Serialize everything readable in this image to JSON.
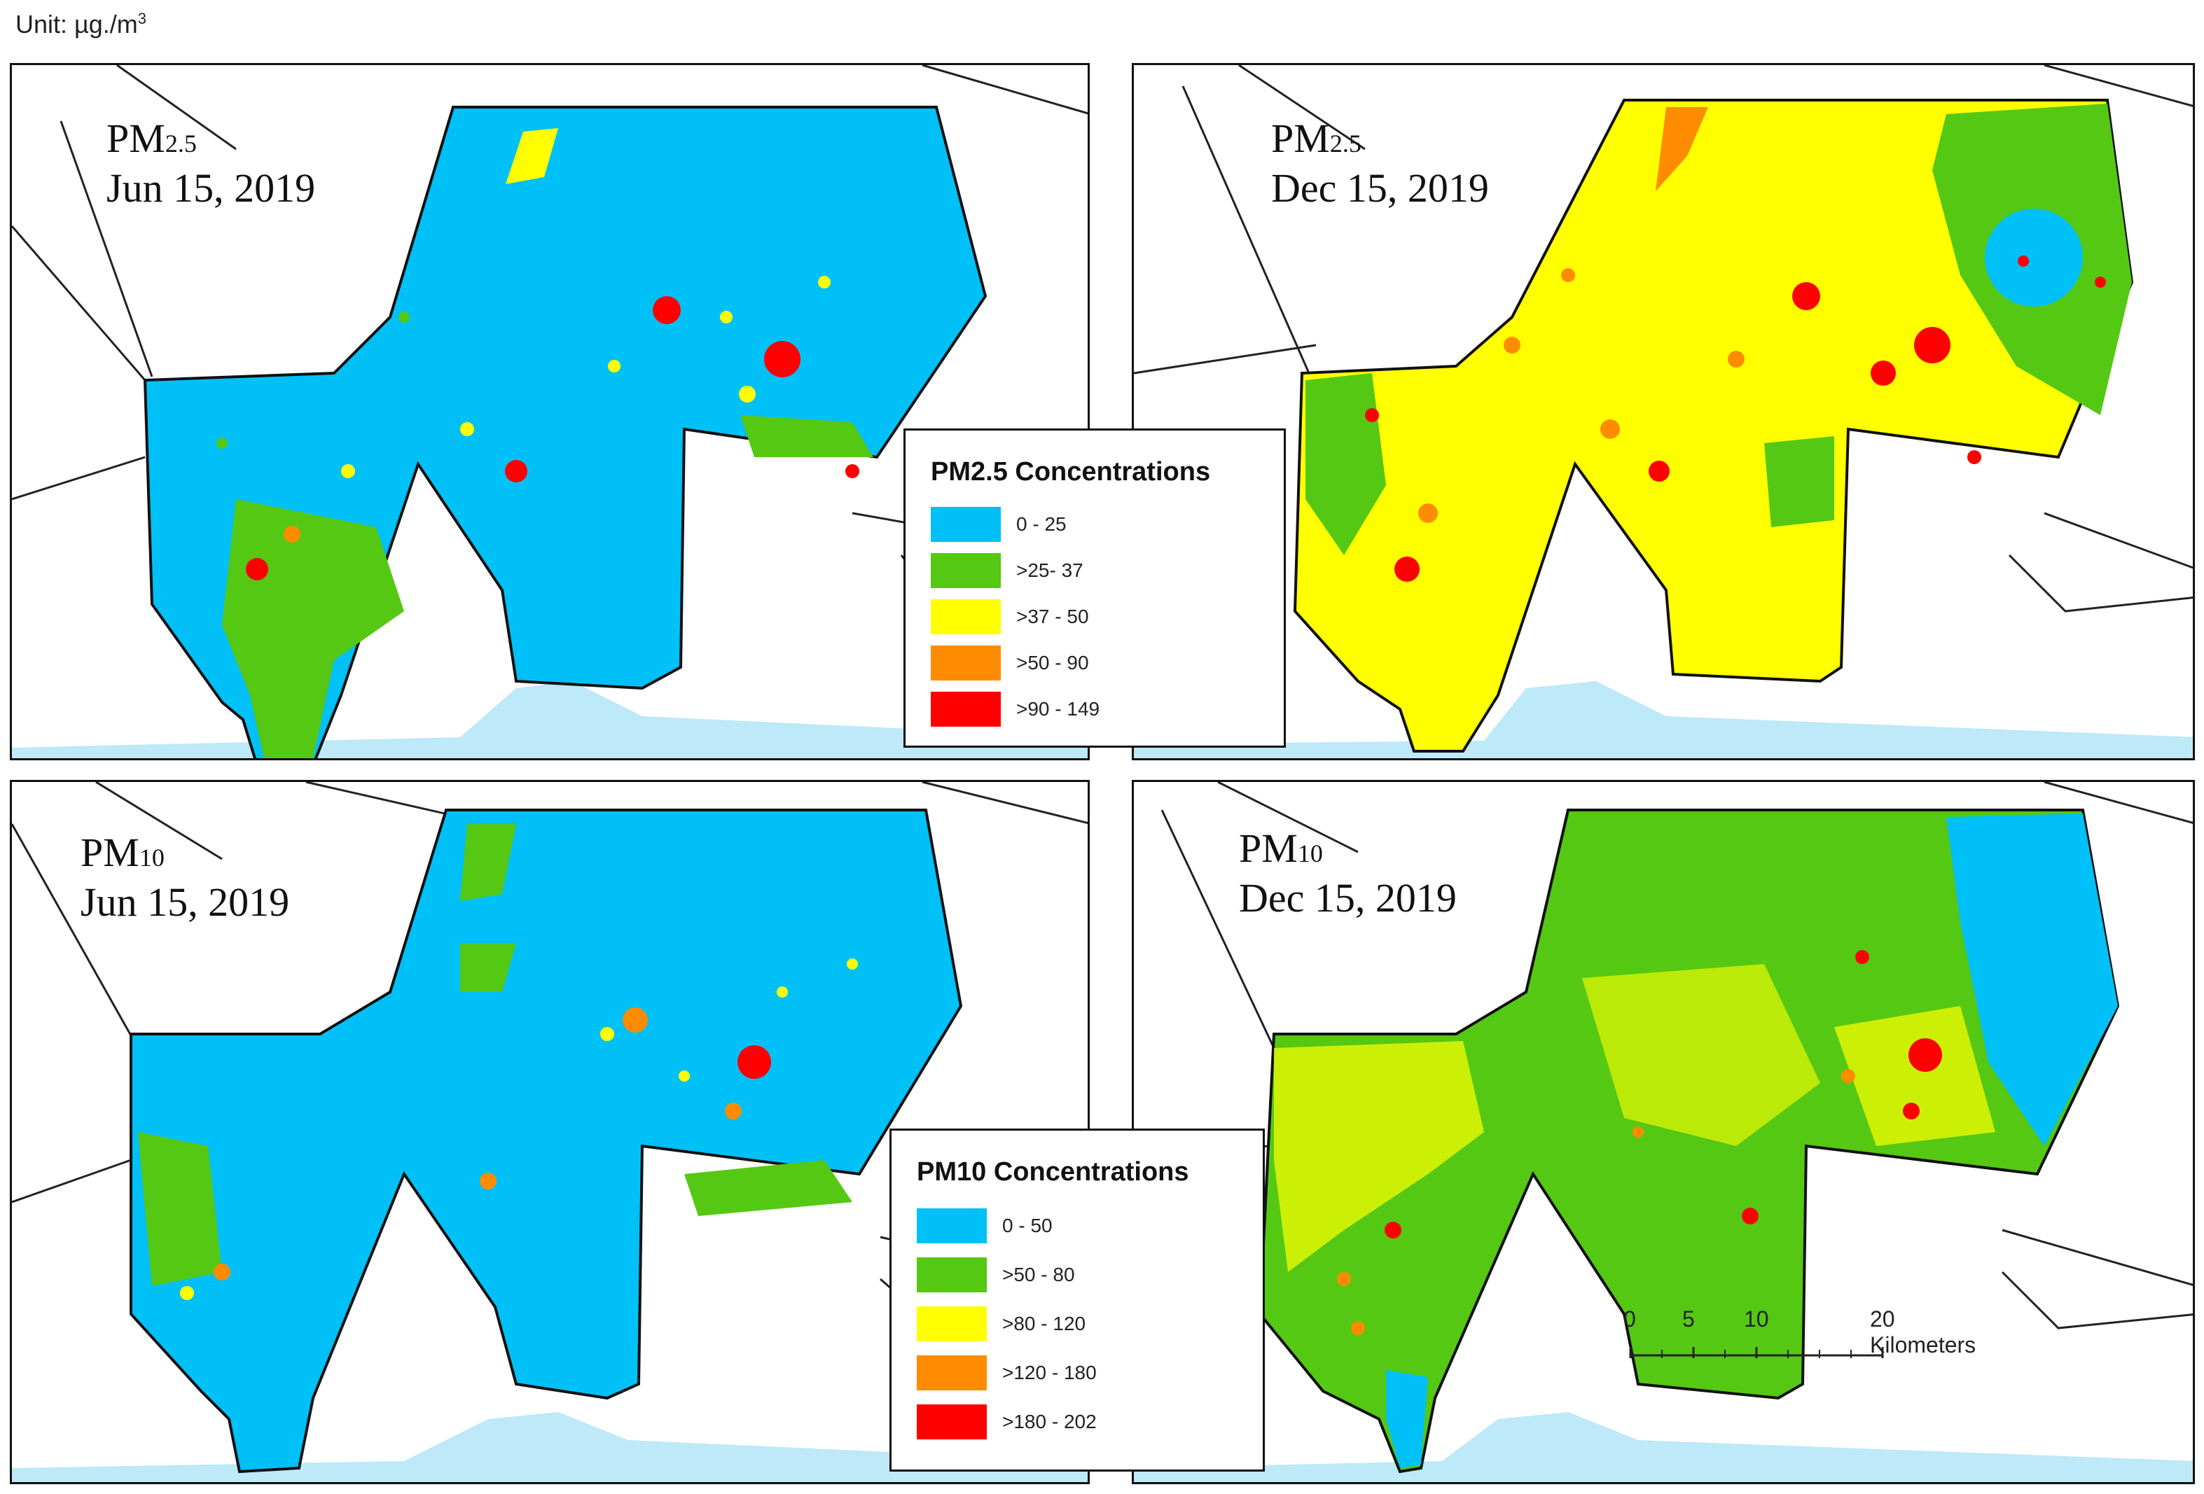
{
  "unit_label": {
    "text": "Unit: µg./m",
    "superscript": "3"
  },
  "panels": [
    {
      "pollutant": "PM",
      "subscript": "2.5",
      "date": "Jun 15, 2019"
    },
    {
      "pollutant": "PM",
      "subscript": "2.5",
      "date": "Dec 15, 2019"
    },
    {
      "pollutant": "PM",
      "subscript": "10",
      "date": "Jun 15, 2019"
    },
    {
      "pollutant": "PM",
      "subscript": "10",
      "date": "Dec 15, 2019"
    }
  ],
  "legends": {
    "pm25": {
      "title": "PM2.5 Concentrations",
      "items": [
        {
          "label": "0 - 25",
          "color": "#00c0f8"
        },
        {
          "label": ">25- 37",
          "color": "#55c814"
        },
        {
          "label": ">37 - 50",
          "color": "#ffff00"
        },
        {
          "label": ">50 - 90",
          "color": "#ff8c00"
        },
        {
          "label": ">90 - 149",
          "color": "#ff0000"
        }
      ]
    },
    "pm10": {
      "title": "PM10 Concentrations",
      "items": [
        {
          "label": "0 - 50",
          "color": "#00c0f8"
        },
        {
          "label": ">50 - 80",
          "color": "#55c814"
        },
        {
          "label": ">80 - 120",
          "color": "#ffff00"
        },
        {
          "label": ">120 - 180",
          "color": "#ff8c00"
        },
        {
          "label": ">180 - 202",
          "color": "#ff0000"
        }
      ]
    }
  },
  "scale_bar": {
    "ticks": [
      "0",
      "5",
      "10",
      "20 Kilometers"
    ]
  },
  "colors": {
    "sea": "#bde9f8",
    "boundary": "#111111",
    "background": "#ffffff"
  }
}
